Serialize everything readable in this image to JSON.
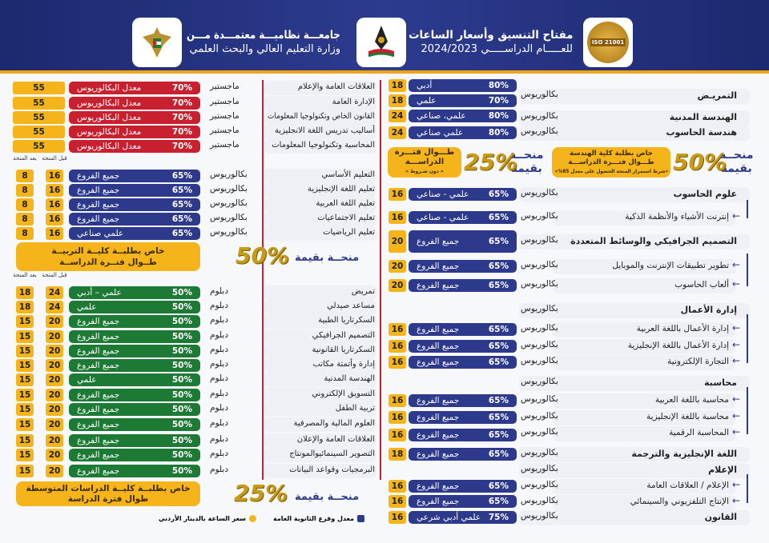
{
  "header": {
    "title_line1": "مفتاح التنسيق وأسعار الساعات",
    "title_line2": "للعـــــام الدراســـــي 2024/2023",
    "uni_line1": "جامعـــة نظاميـــة معتمـــدة مـــن",
    "uni_line2": "وزارة التعليم العالي والبحث العلمي",
    "iso_badge": "ISO 21001",
    "colors": {
      "band": "#1b2a6e",
      "accent": "#f0a21a"
    }
  },
  "right": {
    "programs": [
      {
        "name": "التمريـض",
        "degree": "بكالوريوس",
        "bold": true
      },
      {
        "name": "الهندسة المدنية",
        "degree": "بكالوريوس",
        "bold": true
      },
      {
        "name": "هندسة الحاسوب",
        "degree": "بكالوريوس",
        "bold": true
      },
      {
        "name": "علوم الحاسوب",
        "degree": "بكالوريوس",
        "bold": true
      },
      {
        "name": "إنترنت الأشياء والأنظمة الذكية",
        "degree": "بكالوريوس",
        "arrow": true
      },
      {
        "name": "التصميم الجرافيكي والوسائط المتعددة",
        "degree": "بكالوريوس",
        "bold": true
      },
      {
        "name": "تطوير تطبيقات الإنترنت والموبايل",
        "degree": "بكالوريوس",
        "arrow": true
      },
      {
        "name": "ألعاب الحاسوب",
        "degree": "بكالوريوس",
        "arrow": true
      },
      {
        "name": "إدارة الأعمال",
        "degree": "بكالوريوس",
        "bold": true
      },
      {
        "name": "إدارة الأعمال باللغة العربية",
        "degree": "بكالوريوس",
        "arrow": true
      },
      {
        "name": "إدارة الأعمال باللغة الإنجليزية",
        "degree": "بكالوريوس",
        "arrow": true
      },
      {
        "name": "التجارة الإلكترونية",
        "degree": "بكالوريوس",
        "arrow": true
      },
      {
        "name": "محاسبة",
        "degree": "بكالوريوس",
        "bold": true
      },
      {
        "name": "محاسبة باللغة العربية",
        "degree": "بكالوريوس",
        "arrow": true
      },
      {
        "name": "محاسبة باللغة الإنجليزية",
        "degree": "بكالوريوس",
        "arrow": true
      },
      {
        "name": "المحاسبة الرقمية",
        "degree": "بكالوريوس",
        "arrow": true
      },
      {
        "name": "اللغة الإنجليزية والترجمة",
        "degree": "بكالوريوس",
        "bold": true
      },
      {
        "name": "الإعلام",
        "degree": "بكالوريوس",
        "bold": true
      },
      {
        "name": "الإعلام / العلاقات العامة",
        "degree": "بكالوريوس",
        "arrow": true
      },
      {
        "name": "الإنتاج التلفزيوني والسينمائي",
        "degree": "بكالوريوس",
        "arrow": true
      },
      {
        "name": "القانون",
        "degree": "بكالوريوس",
        "bold": true
      }
    ],
    "pills": [
      {
        "pct": "80%",
        "branch": "أدبي",
        "hours": "18"
      },
      {
        "pct": "70%",
        "branch": "علمي",
        "hours": "18"
      },
      {
        "pct": "80%",
        "branch": "علمي، صناعي",
        "hours": "24"
      },
      {
        "pct": "80%",
        "branch": "علمي  صناعي",
        "hours": "24"
      },
      {
        "pct": "65%",
        "branch": "علمي - صناعي",
        "hours": "16"
      },
      {
        "pct": "65%",
        "branch": "علمي - صناعي",
        "hours": "16"
      },
      {
        "pct": "65%",
        "branch": "جميع الفروع",
        "hours": "20"
      },
      {
        "pct": "65%",
        "branch": "جميع الفروع",
        "hours": "20"
      },
      {
        "pct": "65%",
        "branch": "جميع الفروع",
        "hours": "20"
      },
      {
        "pct": "65%",
        "branch": "جميع الفروع",
        "hours": "16"
      },
      {
        "pct": "65%",
        "branch": "جميع الفروع",
        "hours": "16"
      },
      {
        "pct": "65%",
        "branch": "جميع الفروع",
        "hours": "16"
      },
      {
        "pct": "65%",
        "branch": "جميع الفروع",
        "hours": "16"
      },
      {
        "pct": "65%",
        "branch": "جميع الفروع",
        "hours": "16"
      },
      {
        "pct": "65%",
        "branch": "جميع الفروع",
        "hours": "16"
      },
      {
        "pct": "65%",
        "branch": "جميع الفروع",
        "hours": "18"
      },
      {
        "pct": "65%",
        "branch": "جميع الفروع",
        "hours": "16"
      },
      {
        "pct": "65%",
        "branch": "جميع الفروع",
        "hours": "16"
      },
      {
        "pct": "75%",
        "branch": "علمي  أدبي  شرعي",
        "hours": "16"
      }
    ],
    "eng_scholarship": {
      "word1": "منحــة",
      "word2": "بقيمة",
      "value": "50%",
      "line1": "خاص بطلبة كلية الهندسة",
      "line2": "طـــوال فتـــرة الدراســـة",
      "note": "«شرط استمرار المنحة الحصول على معدل 85%»"
    },
    "general_scholarship": {
      "word1": "منحــة",
      "word2": "بقيمة",
      "value": "25%",
      "line1": "طـــوال فتـــرة",
      "line2": "الدراســـة",
      "note": "« دون شـروط »"
    }
  },
  "left": {
    "masters": [
      {
        "name": "العلاقات العامة والإعلام",
        "degree": "ماجستير",
        "pct": "70%",
        "branch": "معدل البكالوريوس",
        "hours": "55"
      },
      {
        "name": "الإدارة العامة",
        "degree": "ماجستير",
        "pct": "70%",
        "branch": "معدل البكالوريوس",
        "hours": "55"
      },
      {
        "name": "القانون الخاص وتكنولوجيا المعلومات",
        "degree": "ماجستير",
        "pct": "70%",
        "branch": "معدل البكالوريوس",
        "hours": "55"
      },
      {
        "name": "أساليب تدريس اللغة الانجليزية",
        "degree": "ماجستير",
        "pct": "70%",
        "branch": "معدل البكالوريوس",
        "hours": "55"
      },
      {
        "name": "المحاسبة وتكنولوجيا المعلومات",
        "degree": "ماجستير",
        "pct": "70%",
        "branch": "معدل البكالوريوس",
        "hours": "55"
      }
    ],
    "col_before": "قبل المنحة",
    "col_after": "بعد المنحة",
    "education": [
      {
        "name": "التعليم الأساسي",
        "degree": "بكالوريوس",
        "pct": "65%",
        "branch": "جميع الفروع",
        "before": "16",
        "after": "8"
      },
      {
        "name": "تعليم اللغة الإنجليزية",
        "degree": "بكالوريوس",
        "pct": "65%",
        "branch": "جميع الفروع",
        "before": "16",
        "after": "8"
      },
      {
        "name": "تعليم اللغة العربية",
        "degree": "بكالوريوس",
        "pct": "65%",
        "branch": "جميع الفروع",
        "before": "16",
        "after": "8"
      },
      {
        "name": "تعليم الاجتماعيات",
        "degree": "بكالوريوس",
        "pct": "65%",
        "branch": "جميع الفروع",
        "before": "16",
        "after": "8"
      },
      {
        "name": "تعليم الرياضيات",
        "degree": "بكالوريوس",
        "pct": "65%",
        "branch": "علمي  صناعي",
        "before": "16",
        "after": "8"
      }
    ],
    "edu_scholarship": {
      "word": "منحــة بقيمة",
      "value": "50%",
      "line1": "خاص بطلبــة كليــة التربيــة",
      "line2": "طــوال فتــرة الدراســة"
    },
    "diploma": [
      {
        "name": "تمريض",
        "degree": "دبلوم",
        "pct": "50%",
        "branch": "علمي – أدبي",
        "before": "24",
        "after": "18"
      },
      {
        "name": "مساعد صيدلي",
        "degree": "دبلوم",
        "pct": "50%",
        "branch": "علمي",
        "before": "24",
        "after": "18"
      },
      {
        "name": "السكرتاريا الطبية",
        "degree": "دبلوم",
        "pct": "50%",
        "branch": "جميع الفروع",
        "before": "20",
        "after": "15"
      },
      {
        "name": "التصميم الجرافيكي",
        "degree": "دبلوم",
        "pct": "50%",
        "branch": "جميع الفروع",
        "before": "20",
        "after": "15"
      },
      {
        "name": "السكرتاريا القانونية",
        "degree": "دبلوم",
        "pct": "50%",
        "branch": "جميع الفروع",
        "before": "20",
        "after": "15"
      },
      {
        "name": "إدارة وأتمتة مكاتب",
        "degree": "دبلوم",
        "pct": "50%",
        "branch": "جميع الفروع",
        "before": "20",
        "after": "15"
      },
      {
        "name": "الهندسة المدنية",
        "degree": "دبلوم",
        "pct": "50%",
        "branch": "علمي",
        "before": "20",
        "after": "15"
      },
      {
        "name": "التسويق الإلكتروني",
        "degree": "دبلوم",
        "pct": "50%",
        "branch": "جميع الفروع",
        "before": "20",
        "after": "15"
      },
      {
        "name": "تربية الطفل",
        "degree": "دبلوم",
        "pct": "50%",
        "branch": "جميع الفروع",
        "before": "20",
        "after": "15"
      },
      {
        "name": "العلوم المالية والمصرفية",
        "degree": "دبلوم",
        "pct": "50%",
        "branch": "جميع الفروع",
        "before": "20",
        "after": "15"
      },
      {
        "name": "العلاقات العامة والإعلان",
        "degree": "دبلوم",
        "pct": "50%",
        "branch": "جميع الفروع",
        "before": "20",
        "after": "15"
      },
      {
        "name": "التصوير السينمائيوالمونتاج",
        "degree": "دبلوم",
        "pct": "50%",
        "branch": "جميع الفروع",
        "before": "20",
        "after": "15"
      },
      {
        "name": "البرمجيات وقواعد البيانات",
        "degree": "دبلوم",
        "pct": "50%",
        "branch": "جميع الفروع",
        "before": "20",
        "after": "15"
      }
    ],
    "dip_scholarship": {
      "word": "منحــة بقيمة",
      "value": "25%",
      "line1": "خاص بطلبــة كليــة الدراسات المتوسطة",
      "line2": "طوال فترة الدراسة"
    }
  },
  "legend": {
    "navy_label": "معدل وفرع الثانوية العامة",
    "yellow_label": "سعر الساعة بالدينار الأردني"
  },
  "colors": {
    "navy": "#2d3a8c",
    "red": "#c9202f",
    "green": "#1d7a35",
    "yellow": "#f4b41a"
  }
}
